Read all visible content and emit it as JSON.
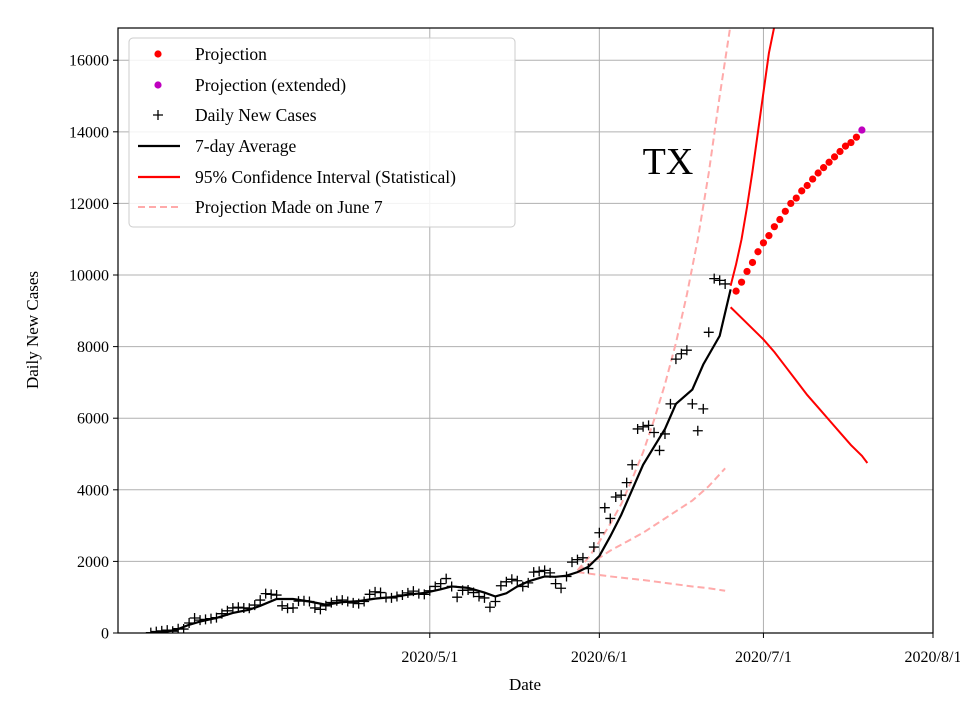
{
  "chart_data": {
    "type": "line",
    "title": "",
    "annotation": "TX",
    "xlabel": "Date",
    "ylabel": "Daily New Cases",
    "x_unit": "days since 2020-03-10",
    "xlim": [
      -5,
      144
    ],
    "ylim": [
      0,
      16900
    ],
    "x_ticks": [
      {
        "day": 52,
        "label": "2020/5/1"
      },
      {
        "day": 83,
        "label": "2020/6/1"
      },
      {
        "day": 113,
        "label": "2020/7/1"
      },
      {
        "day": 144,
        "label": "2020/8/1"
      }
    ],
    "y_ticks": [
      0,
      2000,
      4000,
      6000,
      8000,
      10000,
      12000,
      14000,
      16000
    ],
    "grid": true,
    "legend": {
      "position": "top-left",
      "entries": [
        {
          "label": "Projection",
          "color": "#ff0000",
          "marker": "dot"
        },
        {
          "label": "Projection (extended)",
          "color": "#bf00bf",
          "marker": "dot"
        },
        {
          "label": "Daily New Cases",
          "color": "#000000",
          "marker": "plus"
        },
        {
          "label": "7-day Average",
          "color": "#000000",
          "marker": "line"
        },
        {
          "label": "95% Confidence Interval (Statistical)",
          "color": "#ff0000",
          "marker": "line"
        },
        {
          "label": "Projection Made on June 7",
          "color": "#ffaaaa",
          "marker": "dashed"
        }
      ]
    },
    "series": [
      {
        "name": "Daily New Cases",
        "color": "#000000",
        "points": [
          [
            1,
            10
          ],
          [
            2,
            40
          ],
          [
            3,
            60
          ],
          [
            4,
            80
          ],
          [
            5,
            50
          ],
          [
            6,
            120
          ],
          [
            7,
            110
          ],
          [
            8,
            280
          ],
          [
            9,
            420
          ],
          [
            10,
            360
          ],
          [
            11,
            380
          ],
          [
            12,
            400
          ],
          [
            13,
            430
          ],
          [
            14,
            540
          ],
          [
            15,
            620
          ],
          [
            16,
            700
          ],
          [
            17,
            720
          ],
          [
            18,
            700
          ],
          [
            19,
            690
          ],
          [
            20,
            780
          ],
          [
            21,
            920
          ],
          [
            22,
            1100
          ],
          [
            23,
            1080
          ],
          [
            24,
            1060
          ],
          [
            25,
            760
          ],
          [
            26,
            690
          ],
          [
            27,
            700
          ],
          [
            28,
            890
          ],
          [
            29,
            900
          ],
          [
            30,
            880
          ],
          [
            31,
            700
          ],
          [
            32,
            660
          ],
          [
            33,
            760
          ],
          [
            34,
            850
          ],
          [
            35,
            900
          ],
          [
            36,
            920
          ],
          [
            37,
            880
          ],
          [
            38,
            840
          ],
          [
            39,
            820
          ],
          [
            40,
            880
          ],
          [
            41,
            1080
          ],
          [
            42,
            1150
          ],
          [
            43,
            1130
          ],
          [
            44,
            990
          ],
          [
            45,
            980
          ],
          [
            46,
            1020
          ],
          [
            47,
            1060
          ],
          [
            48,
            1120
          ],
          [
            49,
            1170
          ],
          [
            50,
            1100
          ],
          [
            51,
            1080
          ],
          [
            52,
            1180
          ],
          [
            53,
            1300
          ],
          [
            54,
            1380
          ],
          [
            55,
            1520
          ],
          [
            56,
            1300
          ],
          [
            57,
            1000
          ],
          [
            58,
            1190
          ],
          [
            59,
            1200
          ],
          [
            60,
            1130
          ],
          [
            61,
            1020
          ],
          [
            62,
            980
          ],
          [
            63,
            720
          ],
          [
            64,
            880
          ],
          [
            65,
            1320
          ],
          [
            66,
            1430
          ],
          [
            67,
            1500
          ],
          [
            68,
            1460
          ],
          [
            69,
            1300
          ],
          [
            70,
            1400
          ],
          [
            71,
            1700
          ],
          [
            72,
            1720
          ],
          [
            73,
            1750
          ],
          [
            74,
            1680
          ],
          [
            75,
            1380
          ],
          [
            76,
            1250
          ],
          [
            77,
            1580
          ],
          [
            78,
            1980
          ],
          [
            79,
            2050
          ],
          [
            80,
            2100
          ],
          [
            81,
            1800
          ],
          [
            82,
            2400
          ],
          [
            83,
            2800
          ],
          [
            84,
            3500
          ],
          [
            85,
            3200
          ],
          [
            86,
            3800
          ],
          [
            87,
            3850
          ],
          [
            88,
            4200
          ],
          [
            89,
            4700
          ],
          [
            90,
            5700
          ],
          [
            91,
            5760
          ],
          [
            92,
            5800
          ],
          [
            93,
            5600
          ],
          [
            94,
            5100
          ],
          [
            95,
            5560
          ],
          [
            96,
            6400
          ],
          [
            97,
            7650
          ],
          [
            98,
            7800
          ],
          [
            99,
            7900
          ],
          [
            100,
            6400
          ],
          [
            101,
            5650
          ],
          [
            102,
            6260
          ],
          [
            103,
            8400
          ],
          [
            104,
            9900
          ],
          [
            105,
            9850
          ],
          [
            106,
            9750
          ]
        ]
      },
      {
        "name": "7-day Average",
        "color": "#000000",
        "points": [
          [
            1,
            0
          ],
          [
            4,
            40
          ],
          [
            6,
            110
          ],
          [
            8,
            230
          ],
          [
            10,
            320
          ],
          [
            13,
            420
          ],
          [
            16,
            560
          ],
          [
            19,
            650
          ],
          [
            21,
            760
          ],
          [
            24,
            950
          ],
          [
            27,
            950
          ],
          [
            30,
            880
          ],
          [
            33,
            790
          ],
          [
            36,
            860
          ],
          [
            39,
            890
          ],
          [
            42,
            960
          ],
          [
            45,
            1000
          ],
          [
            48,
            1070
          ],
          [
            51,
            1120
          ],
          [
            54,
            1220
          ],
          [
            56,
            1300
          ],
          [
            59,
            1260
          ],
          [
            62,
            1130
          ],
          [
            64,
            1020
          ],
          [
            66,
            1110
          ],
          [
            68,
            1300
          ],
          [
            70,
            1440
          ],
          [
            73,
            1580
          ],
          [
            75,
            1570
          ],
          [
            77,
            1600
          ],
          [
            79,
            1700
          ],
          [
            81,
            1850
          ],
          [
            83,
            2150
          ],
          [
            85,
            2700
          ],
          [
            87,
            3300
          ],
          [
            89,
            4000
          ],
          [
            91,
            4700
          ],
          [
            93,
            5200
          ],
          [
            95,
            5700
          ],
          [
            97,
            6400
          ],
          [
            100,
            6800
          ],
          [
            102,
            7500
          ],
          [
            105,
            8300
          ],
          [
            107,
            9600
          ]
        ]
      },
      {
        "name": "Projection",
        "color": "#ff0000",
        "points": [
          [
            108,
            9550
          ],
          [
            109,
            9800
          ],
          [
            110,
            10100
          ],
          [
            111,
            10350
          ],
          [
            112,
            10650
          ],
          [
            113,
            10900
          ],
          [
            114,
            11100
          ],
          [
            115,
            11350
          ],
          [
            116,
            11550
          ],
          [
            117,
            11780
          ],
          [
            118,
            12000
          ],
          [
            119,
            12150
          ],
          [
            120,
            12350
          ],
          [
            121,
            12500
          ],
          [
            122,
            12680
          ],
          [
            123,
            12850
          ],
          [
            124,
            13000
          ],
          [
            125,
            13150
          ],
          [
            126,
            13300
          ],
          [
            127,
            13450
          ],
          [
            128,
            13600
          ],
          [
            129,
            13700
          ],
          [
            130,
            13850
          ]
        ]
      },
      {
        "name": "Projection (extended)",
        "color": "#bf00bf",
        "points": [
          [
            131,
            14050
          ]
        ]
      },
      {
        "name": "95% Confidence Interval upper",
        "color": "#ff0000",
        "points": [
          [
            107,
            9700
          ],
          [
            108,
            10300
          ],
          [
            109,
            11000
          ],
          [
            110,
            11900
          ],
          [
            111,
            12900
          ],
          [
            112,
            14000
          ],
          [
            113,
            15100
          ],
          [
            114,
            16200
          ],
          [
            115,
            16950
          ]
        ]
      },
      {
        "name": "95% Confidence Interval lower",
        "color": "#ff0000",
        "points": [
          [
            107,
            9100
          ],
          [
            109,
            8800
          ],
          [
            111,
            8500
          ],
          [
            113,
            8200
          ],
          [
            115,
            7850
          ],
          [
            117,
            7450
          ],
          [
            119,
            7050
          ],
          [
            121,
            6650
          ],
          [
            123,
            6300
          ],
          [
            125,
            5950
          ],
          [
            127,
            5600
          ],
          [
            129,
            5250
          ],
          [
            131,
            4950
          ],
          [
            132,
            4750
          ]
        ]
      },
      {
        "name": "Projection Made on June 7 upper",
        "color": "#ffaaaa",
        "points": [
          [
            79,
            1750
          ],
          [
            81,
            2100
          ],
          [
            83,
            2550
          ],
          [
            85,
            3050
          ],
          [
            87,
            3600
          ],
          [
            89,
            4300
          ],
          [
            91,
            5050
          ],
          [
            93,
            5950
          ],
          [
            95,
            6950
          ],
          [
            97,
            8100
          ],
          [
            99,
            9450
          ],
          [
            101,
            11000
          ],
          [
            103,
            12850
          ],
          [
            105,
            15000
          ],
          [
            107,
            17000
          ]
        ]
      },
      {
        "name": "Projection Made on June 7 mid",
        "color": "#ffaaaa",
        "points": [
          [
            79,
            1750
          ],
          [
            82,
            2000
          ],
          [
            85,
            2300
          ],
          [
            88,
            2550
          ],
          [
            91,
            2800
          ],
          [
            94,
            3100
          ],
          [
            97,
            3400
          ],
          [
            100,
            3700
          ],
          [
            103,
            4100
          ],
          [
            106,
            4600
          ]
        ]
      },
      {
        "name": "Projection Made on June 7 lower",
        "color": "#ffaaaa",
        "points": [
          [
            79,
            1700
          ],
          [
            82,
            1640
          ],
          [
            85,
            1580
          ],
          [
            88,
            1530
          ],
          [
            91,
            1480
          ],
          [
            94,
            1420
          ],
          [
            97,
            1360
          ],
          [
            100,
            1300
          ],
          [
            103,
            1250
          ],
          [
            106,
            1180
          ]
        ]
      }
    ]
  }
}
